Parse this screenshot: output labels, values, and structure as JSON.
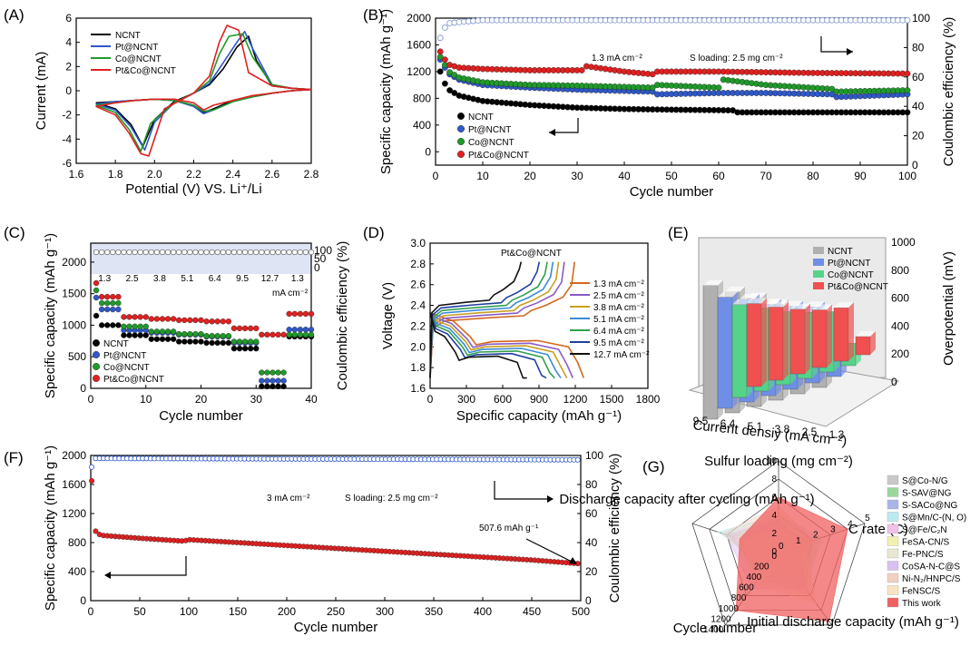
{
  "colors": {
    "NCNT": "#000000",
    "Pt@NCNT": "#2f58c8",
    "Co@NCNT": "#1f9a2a",
    "Pt&Co@NCNT": "#e02020"
  },
  "chart_data": [
    {
      "panel_label": "(A)",
      "type": "line",
      "title": "",
      "xlabel": "Potential (V) VS. Li⁺/Li",
      "ylabel": "Current  (mA)",
      "xlim": [
        1.6,
        2.8
      ],
      "ylim": [
        -6,
        6
      ],
      "xticks": [
        "1.6",
        "1.8",
        "2.0",
        "2.2",
        "2.4",
        "2.6",
        "2.8"
      ],
      "yticks": [
        "-6",
        "-4",
        "-2",
        "0",
        "2",
        "4",
        "6"
      ],
      "series": [
        {
          "name": "NCNT",
          "color": "#000000",
          "x": [
            1.7,
            1.8,
            1.88,
            1.94,
            2.0,
            2.1,
            2.2,
            2.28,
            2.35,
            2.42,
            2.48,
            2.52,
            2.6,
            2.7,
            2.8,
            2.7,
            2.6,
            2.5,
            2.4,
            2.3,
            2.25,
            2.2,
            2.1,
            2.0,
            1.9,
            1.8,
            1.7
          ],
          "y": [
            -1.0,
            -1.5,
            -2.8,
            -4.6,
            -2.4,
            -0.9,
            -0.2,
            0.5,
            1.8,
            3.6,
            4.5,
            2.5,
            0.4,
            0.2,
            0.1,
            0,
            -0.2,
            -0.5,
            -0.8,
            -1.5,
            -1.8,
            -1.2,
            -0.8,
            -0.7,
            -0.8,
            -0.9,
            -1.0
          ]
        },
        {
          "name": "Pt@NCNT",
          "color": "#2f58c8",
          "x": [
            1.7,
            1.8,
            1.88,
            1.95,
            2.0,
            2.1,
            2.2,
            2.28,
            2.35,
            2.42,
            2.46,
            2.5,
            2.6,
            2.7,
            2.8,
            2.7,
            2.6,
            2.5,
            2.4,
            2.3,
            2.25,
            2.2,
            2.1,
            2.0,
            1.9,
            1.8,
            1.7
          ],
          "y": [
            -1.1,
            -1.6,
            -3.0,
            -4.9,
            -2.6,
            -1.0,
            -0.2,
            0.6,
            2.3,
            4.0,
            4.9,
            3.5,
            0.5,
            0.2,
            0.1,
            0,
            -0.2,
            -0.5,
            -0.9,
            -1.6,
            -1.9,
            -1.3,
            -0.8,
            -0.7,
            -0.8,
            -0.9,
            -1.1
          ]
        },
        {
          "name": "Co@NCNT",
          "color": "#1f9a2a",
          "x": [
            1.7,
            1.8,
            1.87,
            1.93,
            1.98,
            2.1,
            2.2,
            2.28,
            2.33,
            2.38,
            2.45,
            2.5,
            2.6,
            2.7,
            2.8,
            2.7,
            2.6,
            2.5,
            2.4,
            2.3,
            2.25,
            2.2,
            2.1,
            2.0,
            1.9,
            1.8,
            1.7
          ],
          "y": [
            -1.2,
            -1.8,
            -3.2,
            -5.0,
            -2.7,
            -1.0,
            -0.2,
            0.8,
            3.0,
            4.5,
            4.7,
            2.8,
            0.5,
            0.2,
            0.1,
            0,
            -0.2,
            -0.5,
            -0.9,
            -1.6,
            -1.7,
            -1.2,
            -0.8,
            -0.7,
            -0.8,
            -1.0,
            -1.2
          ]
        },
        {
          "name": "Pt&Co@NCNT",
          "color": "#e02020",
          "x": [
            1.7,
            1.8,
            1.87,
            1.93,
            1.97,
            2.05,
            2.2,
            2.28,
            2.33,
            2.37,
            2.43,
            2.48,
            2.6,
            2.7,
            2.8,
            2.7,
            2.6,
            2.5,
            2.4,
            2.3,
            2.25,
            2.2,
            2.1,
            2.0,
            1.9,
            1.8,
            1.7
          ],
          "y": [
            -1.3,
            -2.0,
            -3.5,
            -5.2,
            -5.4,
            -1.5,
            -0.2,
            1.2,
            4.0,
            5.4,
            5.0,
            1.5,
            0.4,
            0.2,
            0.1,
            0,
            -0.2,
            -0.4,
            -0.8,
            -1.2,
            -1.6,
            -1.0,
            -0.7,
            -0.7,
            -0.8,
            -1.0,
            -1.3
          ]
        }
      ]
    },
    {
      "panel_label": "(B)",
      "type": "scatter",
      "xlabel": "Cycle number",
      "ylabel": "Specific capacity (mAh g⁻¹)",
      "y2label": "Coulombic efficiency (%)",
      "xlim": [
        0,
        100
      ],
      "ylim": [
        -200,
        2000
      ],
      "y2lim": [
        0,
        100
      ],
      "xticks": [
        "0",
        "10",
        "20",
        "30",
        "40",
        "50",
        "60",
        "70",
        "80",
        "90",
        "100"
      ],
      "yticks": [
        "0",
        "400",
        "800",
        "1200",
        "1600",
        "2000"
      ],
      "y2ticks": [
        "0",
        "20",
        "40",
        "60",
        "80",
        "100"
      ],
      "annotations": [
        "1.3 mA cm⁻²",
        "S loading: 2.5 mg cm⁻²"
      ],
      "capacity": [
        {
          "name": "NCNT",
          "color": "#000000",
          "points": [
            [
              1,
              1200
            ],
            [
              2,
              1020
            ],
            [
              3,
              920
            ],
            [
              5,
              840
            ],
            [
              10,
              760
            ],
            [
              20,
              700
            ],
            [
              30,
              660
            ],
            [
              40,
              640
            ],
            [
              50,
              630
            ],
            [
              63,
              620
            ],
            [
              64,
              590
            ],
            [
              80,
              590
            ],
            [
              100,
              590
            ]
          ]
        },
        {
          "name": "Pt@NCNT",
          "color": "#2f58c8",
          "points": [
            [
              1,
              1380
            ],
            [
              2,
              1260
            ],
            [
              3,
              1160
            ],
            [
              5,
              1080
            ],
            [
              10,
              1000
            ],
            [
              20,
              960
            ],
            [
              30,
              930
            ],
            [
              46,
              900
            ],
            [
              47,
              860
            ],
            [
              60,
              880
            ],
            [
              70,
              880
            ],
            [
              84,
              860
            ],
            [
              85,
              820
            ],
            [
              100,
              860
            ]
          ]
        },
        {
          "name": "Co@NCNT",
          "color": "#1f9a2a",
          "points": [
            [
              1,
              1420
            ],
            [
              2,
              1300
            ],
            [
              3,
              1190
            ],
            [
              5,
              1110
            ],
            [
              10,
              1040
            ],
            [
              20,
              1000
            ],
            [
              30,
              990
            ],
            [
              46,
              960
            ],
            [
              47,
              1000
            ],
            [
              60,
              960
            ],
            [
              61,
              1080
            ],
            [
              70,
              1000
            ],
            [
              84,
              940
            ],
            [
              85,
              900
            ],
            [
              100,
              920
            ]
          ]
        },
        {
          "name": "Pt&Co@NCNT",
          "color": "#e02020",
          "points": [
            [
              1,
              1500
            ],
            [
              2,
              1380
            ],
            [
              3,
              1300
            ],
            [
              5,
              1260
            ],
            [
              10,
              1240
            ],
            [
              20,
              1220
            ],
            [
              31,
              1220
            ],
            [
              32,
              1280
            ],
            [
              40,
              1200
            ],
            [
              46,
              1160
            ],
            [
              47,
              1200
            ],
            [
              60,
              1200
            ],
            [
              80,
              1180
            ],
            [
              100,
              1170
            ]
          ]
        }
      ],
      "efficiency": [
        [
          1,
          86
        ],
        [
          2,
          93
        ],
        [
          3,
          96
        ],
        [
          6,
          97
        ],
        [
          10,
          98
        ],
        [
          100,
          98
        ]
      ]
    },
    {
      "panel_label": "(C)",
      "type": "scatter",
      "xlabel": "Cycle number",
      "ylabel": "Specific capacity (mAh g⁻¹)",
      "y2label": "Coulombic efficiency (%)",
      "xlim": [
        0,
        40
      ],
      "ylim": [
        0,
        2300
      ],
      "xticks": [
        "0",
        "10",
        "20",
        "30",
        "40"
      ],
      "yticks": [
        "0",
        "500",
        "1000",
        "1500",
        "2000"
      ],
      "y2ticks": [
        "0",
        "50",
        "100"
      ],
      "rate_labels": [
        "1.3",
        "2.5",
        "3.8",
        "5.1",
        "6.4",
        "9.5",
        "12.7",
        "1.3"
      ],
      "rate_unit": "mA cm⁻²",
      "capacity": [
        {
          "name": "NCNT",
          "color": "#000000",
          "steps": [
            1000,
            840,
            780,
            740,
            720,
            630,
            30,
            820
          ]
        },
        {
          "name": "Pt@NCNT",
          "color": "#2f58c8",
          "steps": [
            1250,
            920,
            880,
            850,
            820,
            720,
            120,
            930
          ]
        },
        {
          "name": "Co@NCNT",
          "color": "#1f9a2a",
          "steps": [
            1350,
            980,
            900,
            860,
            830,
            740,
            250,
            850
          ]
        },
        {
          "name": "Pt&Co@NCNT",
          "color": "#e02020",
          "steps": [
            1450,
            1130,
            1100,
            1080,
            1060,
            950,
            850,
            1180
          ]
        }
      ]
    },
    {
      "panel_label": "(D)",
      "type": "line",
      "title": "Pt&Co@NCNT",
      "xlabel": "Specific capacity (mAh g⁻¹)",
      "ylabel": "Voltage (V)",
      "xlim": [
        0,
        1800
      ],
      "ylim": [
        1.6,
        3.0
      ],
      "xticks": [
        "0",
        "300",
        "600",
        "900",
        "1200",
        "1500",
        "1800"
      ],
      "yticks": [
        "1.6",
        "1.8",
        "2.0",
        "2.2",
        "2.4",
        "2.6",
        "2.8",
        "3.0"
      ],
      "series": [
        {
          "name": "1.3 mA cm⁻²",
          "color": "#d2691e",
          "capacity": 1270
        },
        {
          "name": "2.5 mA cm⁻²",
          "color": "#8a5cc8",
          "capacity": 1180
        },
        {
          "name": "3.8 mA cm⁻²",
          "color": "#c8a020",
          "capacity": 1130
        },
        {
          "name": "5.1 mA cm⁻²",
          "color": "#3a8ad8",
          "capacity": 1080
        },
        {
          "name": "6.4 mA cm⁻²",
          "color": "#30a050",
          "capacity": 1030
        },
        {
          "name": "9.5 mA cm⁻²",
          "color": "#2040a0",
          "capacity": 960
        },
        {
          "name": "12.7 mA cm⁻²",
          "color": "#111111",
          "capacity": 800
        }
      ]
    },
    {
      "panel_label": "(E)",
      "type": "bar",
      "xlabel": "Current densiy (mA cm⁻²)",
      "zlabel": "Overpotential (mV)",
      "categories": [
        "9.5",
        "6.4",
        "5.1",
        "3.8",
        "2.5",
        "1.3"
      ],
      "zticks": [
        "0",
        "200",
        "400",
        "600",
        "800",
        "1000"
      ],
      "series": [
        {
          "name": "NCNT",
          "color": "#b0b0b0",
          "values": [
            950,
            860,
            770,
            680,
            600,
            250
          ]
        },
        {
          "name": "Pt@NCNT",
          "color": "#6f8fe6",
          "values": [
            790,
            730,
            650,
            590,
            540,
            210
          ]
        },
        {
          "name": "Co@NCNT",
          "color": "#55d38a",
          "values": [
            660,
            590,
            520,
            470,
            430,
            160
          ]
        },
        {
          "name": "Pt&Co@NCNT",
          "color": "#f05050",
          "values": [
            590,
            520,
            460,
            410,
            380,
            130
          ]
        }
      ]
    },
    {
      "panel_label": "(F)",
      "type": "scatter",
      "xlabel": "Cycle number",
      "ylabel": "Specific capacity (mAh g⁻¹)",
      "y2label": "Coulombic efficiency (%)",
      "xlim": [
        0,
        500
      ],
      "ylim": [
        0,
        2000
      ],
      "y2lim": [
        0,
        100
      ],
      "xticks": [
        "0",
        "50",
        "100",
        "150",
        "200",
        "250",
        "300",
        "350",
        "400",
        "450",
        "500"
      ],
      "yticks": [
        "0",
        "400",
        "800",
        "1200",
        "1600",
        "2000"
      ],
      "y2ticks": [
        "0",
        "20",
        "40",
        "60",
        "80",
        "100"
      ],
      "annotations": [
        "3 mA cm⁻²",
        "S loading: 2.5 mg cm⁻²",
        "507.6 mAh g⁻¹"
      ],
      "capacity": [
        [
          1,
          1650
        ],
        [
          3,
          980
        ],
        [
          10,
          900
        ],
        [
          50,
          860
        ],
        [
          95,
          820
        ],
        [
          100,
          840
        ],
        [
          150,
          800
        ],
        [
          200,
          760
        ],
        [
          250,
          720
        ],
        [
          300,
          680
        ],
        [
          350,
          640
        ],
        [
          400,
          600
        ],
        [
          450,
          560
        ],
        [
          500,
          507.6
        ]
      ],
      "efficiency": [
        [
          1,
          92
        ],
        [
          3,
          98
        ],
        [
          500,
          97
        ]
      ]
    },
    {
      "panel_label": "(G)",
      "type": "radar",
      "axes": [
        {
          "label": "Sulfur loading (mg cm⁻²)",
          "ticks": [
            "0",
            "2",
            "4",
            "6",
            "8",
            "10"
          ]
        },
        {
          "label": "C rate (C)",
          "ticks": [
            "0",
            "1",
            "2",
            "3",
            "4",
            "5"
          ]
        },
        {
          "label": "Initial discharge capacity (mAh g⁻¹)",
          "ticks": []
        },
        {
          "label": "Cycle number",
          "ticks": [
            "0",
            "200",
            "400",
            "600",
            "800",
            "1000",
            "1200",
            "1400"
          ]
        },
        {
          "label": "Discharge capacity after cycling (mAh g⁻¹)",
          "ticks": []
        }
      ],
      "legend": [
        "S@Co-N/G",
        "S-SAV@NG",
        "S-SACo@NG",
        "S@Mn/C-(N, O)",
        "S@Fe/C₂N",
        "FeSA-CN/S",
        "Fe-PNC/S",
        "CoSA-N-C@S",
        "Ni-N₂/HNPC/S",
        "FeNSC/S",
        "This work"
      ],
      "legend_colors": [
        "#c8c8c8",
        "#9ad89a",
        "#aab4e8",
        "#b8ecf0",
        "#f0c0e8",
        "#f4f0b0",
        "#e8e8d0",
        "#d8c0f0",
        "#f0d0c0",
        "#f8e4c0",
        "#f06060"
      ]
    }
  ]
}
